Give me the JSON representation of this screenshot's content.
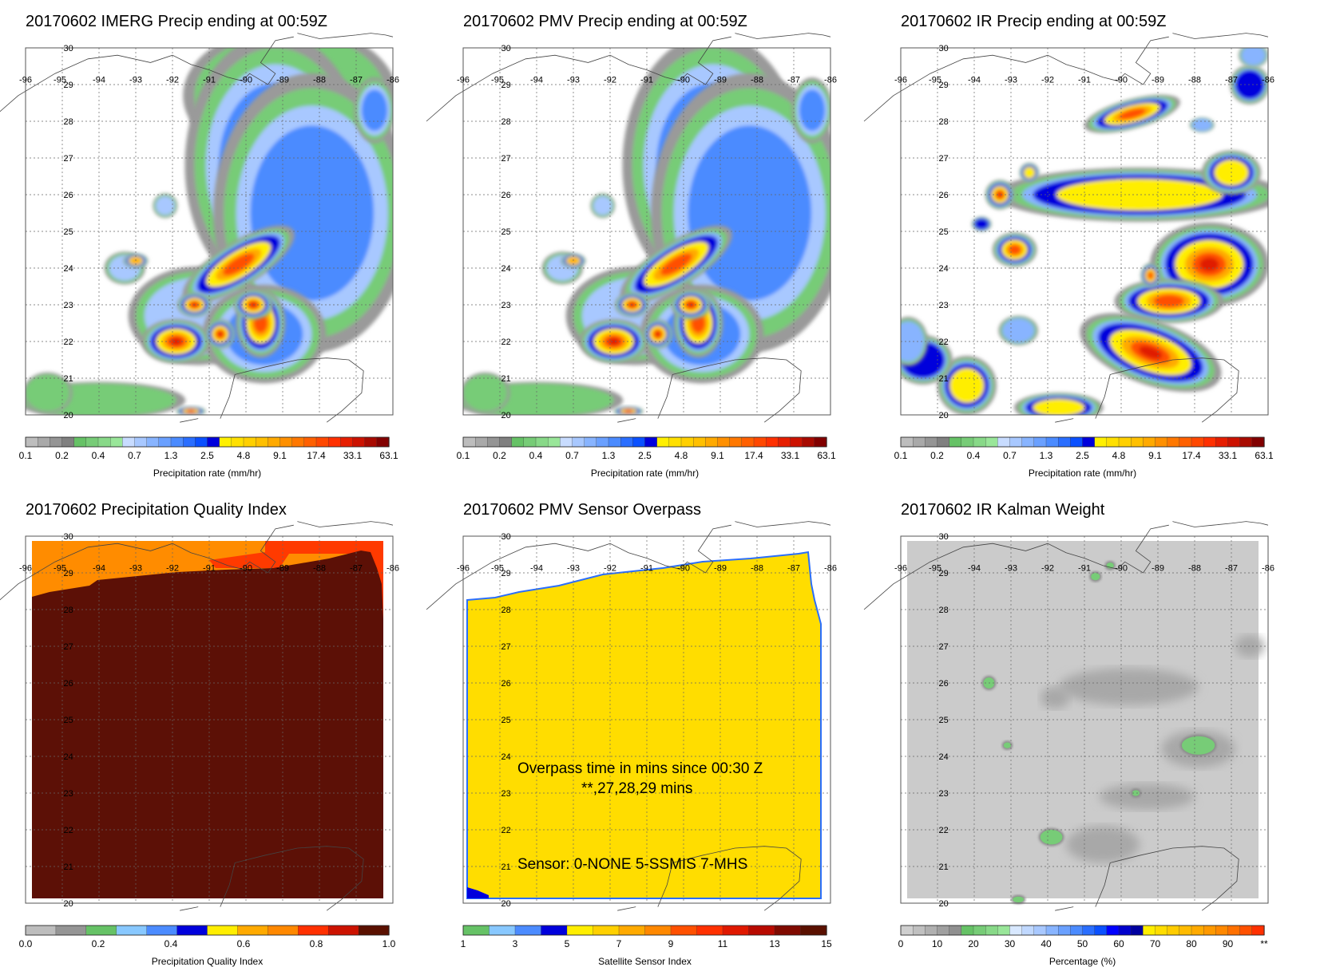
{
  "chart_data": [
    {
      "type": "heatmap",
      "title": "20170602 IMERG Precip ending at 00:59Z",
      "lon_ticks": [
        "-96",
        "-95",
        "-94",
        "-93",
        "-92",
        "-91",
        "-90",
        "-89",
        "-88",
        "-87",
        "-86"
      ],
      "lat_ticks": [
        "30",
        "29",
        "28",
        "27",
        "26",
        "25",
        "24",
        "23",
        "22",
        "21",
        "20"
      ],
      "xlim": [
        -96,
        -86
      ],
      "ylim": [
        20,
        30
      ],
      "colorbar": {
        "label": "Precipitation rate (mm/hr)",
        "tick_labels": [
          "0.1",
          "0.2",
          "0.4",
          "0.7",
          "1.3",
          "2.5",
          "4.8",
          "9.1",
          "17.4",
          "33.1",
          "63.1"
        ],
        "colors": [
          "#bdbdbd",
          "#a9a9a9",
          "#959595",
          "#808080",
          "#66c266",
          "#77cc77",
          "#88d988",
          "#99e699",
          "#c8dcff",
          "#a8c8ff",
          "#88b4ff",
          "#6aa0ff",
          "#4b8bff",
          "#2a6eff",
          "#0a50ff",
          "#0000dc",
          "#fff000",
          "#ffe000",
          "#ffd000",
          "#ffc000",
          "#ffaa00",
          "#ff9000",
          "#ff7800",
          "#ff6000",
          "#ff4800",
          "#ff3000",
          "#e61e00",
          "#cc1200",
          "#a80a00",
          "#820000"
        ]
      },
      "features": [
        {
          "type": "low",
          "lon": -88.8,
          "lat": 28.7,
          "rx": 2.6,
          "ry": 1.7,
          "intensity": 0.3
        },
        {
          "type": "low",
          "lon": -89.2,
          "lat": 26.8,
          "rx": 2.2,
          "ry": 3.2,
          "intensity": 0.55
        },
        {
          "type": "low",
          "lon": -88.2,
          "lat": 25.5,
          "rx": 2.4,
          "ry": 3.4,
          "intensity": 0.55
        },
        {
          "type": "low",
          "lon": -86.5,
          "lat": 28.3,
          "rx": 0.5,
          "ry": 0.8,
          "intensity": 0.65
        },
        {
          "type": "low",
          "lon": -91.3,
          "lat": 22.7,
          "rx": 1.7,
          "ry": 1.2,
          "intensity": 0.45
        },
        {
          "type": "low",
          "lon": -89.5,
          "lat": 22.2,
          "rx": 1.5,
          "ry": 1.2,
          "intensity": 0.5
        },
        {
          "type": "low",
          "lon": -94.0,
          "lat": 20.4,
          "rx": 2.1,
          "ry": 0.45,
          "intensity": 0.25
        },
        {
          "type": "low",
          "lon": -95.4,
          "lat": 20.6,
          "rx": 0.6,
          "ry": 0.5,
          "intensity": 0.25
        },
        {
          "type": "low",
          "lon": -92.2,
          "lat": 25.7,
          "rx": 0.3,
          "ry": 0.3,
          "intensity": 0.4
        },
        {
          "type": "low",
          "lon": -93.3,
          "lat": 24.0,
          "rx": 0.5,
          "ry": 0.4,
          "intensity": 0.4
        },
        {
          "type": "core",
          "lon": -90.2,
          "lat": 24.1,
          "rx": 1.3,
          "ry": 0.45,
          "angle": -32,
          "intensity": 0.75
        },
        {
          "type": "core",
          "lon": -91.9,
          "lat": 22.0,
          "rx": 0.7,
          "ry": 0.45,
          "intensity": 0.95
        },
        {
          "type": "core",
          "lon": -90.7,
          "lat": 22.2,
          "rx": 0.3,
          "ry": 0.3,
          "intensity": 0.9
        },
        {
          "type": "core",
          "lon": -89.6,
          "lat": 22.5,
          "rx": 0.5,
          "ry": 0.7,
          "intensity": 0.75
        },
        {
          "type": "core",
          "lon": -89.8,
          "lat": 23.0,
          "rx": 0.4,
          "ry": 0.3,
          "intensity": 0.95
        },
        {
          "type": "core",
          "lon": -91.4,
          "lat": 23.0,
          "rx": 0.35,
          "ry": 0.25,
          "intensity": 0.9
        },
        {
          "type": "core",
          "lon": -93.0,
          "lat": 24.2,
          "rx": 0.25,
          "ry": 0.15,
          "intensity": 0.7
        },
        {
          "type": "core",
          "lon": -91.5,
          "lat": 20.1,
          "rx": 0.3,
          "ry": 0.1,
          "intensity": 0.95
        }
      ]
    },
    {
      "type": "heatmap",
      "title": "20170602 PMV Precip ending at 00:59Z",
      "lon_ticks": [
        "-96",
        "-95",
        "-94",
        "-93",
        "-92",
        "-91",
        "-90",
        "-89",
        "-88",
        "-87",
        "-86"
      ],
      "lat_ticks": [
        "30",
        "29",
        "28",
        "27",
        "26",
        "25",
        "24",
        "23",
        "22",
        "21",
        "20"
      ],
      "xlim": [
        -96,
        -86
      ],
      "ylim": [
        20,
        30
      ],
      "colorbar": {
        "label": "Precipitation rate (mm/hr)",
        "tick_labels": [
          "0.1",
          "0.2",
          "0.4",
          "0.7",
          "1.3",
          "2.5",
          "4.8",
          "9.1",
          "17.4",
          "33.1",
          "63.1"
        ],
        "colors": [
          "#bdbdbd",
          "#a9a9a9",
          "#959595",
          "#808080",
          "#66c266",
          "#77cc77",
          "#88d988",
          "#99e699",
          "#c8dcff",
          "#a8c8ff",
          "#88b4ff",
          "#6aa0ff",
          "#4b8bff",
          "#2a6eff",
          "#0a50ff",
          "#0000dc",
          "#fff000",
          "#ffe000",
          "#ffd000",
          "#ffc000",
          "#ffaa00",
          "#ff9000",
          "#ff7800",
          "#ff6000",
          "#ff4800",
          "#ff3000",
          "#e61e00",
          "#cc1200",
          "#a80a00",
          "#820000"
        ]
      },
      "features": [
        {
          "type": "low",
          "lon": -89.2,
          "lat": 26.8,
          "rx": 2.2,
          "ry": 3.2,
          "intensity": 0.55
        },
        {
          "type": "low",
          "lon": -88.2,
          "lat": 25.5,
          "rx": 2.4,
          "ry": 3.4,
          "intensity": 0.55
        },
        {
          "type": "low",
          "lon": -86.5,
          "lat": 28.3,
          "rx": 0.5,
          "ry": 0.8,
          "intensity": 0.65
        },
        {
          "type": "low",
          "lon": -91.3,
          "lat": 22.7,
          "rx": 1.7,
          "ry": 1.2,
          "intensity": 0.45
        },
        {
          "type": "low",
          "lon": -89.5,
          "lat": 22.2,
          "rx": 1.5,
          "ry": 1.2,
          "intensity": 0.5
        },
        {
          "type": "low",
          "lon": -94.0,
          "lat": 20.4,
          "rx": 2.1,
          "ry": 0.45,
          "intensity": 0.25
        },
        {
          "type": "low",
          "lon": -95.4,
          "lat": 20.6,
          "rx": 0.6,
          "ry": 0.5,
          "intensity": 0.25
        },
        {
          "type": "low",
          "lon": -92.2,
          "lat": 25.7,
          "rx": 0.3,
          "ry": 0.3,
          "intensity": 0.4
        },
        {
          "type": "low",
          "lon": -93.3,
          "lat": 24.0,
          "rx": 0.5,
          "ry": 0.4,
          "intensity": 0.4
        },
        {
          "type": "core",
          "lon": -90.2,
          "lat": 24.1,
          "rx": 1.3,
          "ry": 0.45,
          "angle": -32,
          "intensity": 0.75
        },
        {
          "type": "core",
          "lon": -91.9,
          "lat": 22.0,
          "rx": 0.7,
          "ry": 0.45,
          "intensity": 0.95
        },
        {
          "type": "core",
          "lon": -90.7,
          "lat": 22.2,
          "rx": 0.3,
          "ry": 0.3,
          "intensity": 0.9
        },
        {
          "type": "core",
          "lon": -89.6,
          "lat": 22.5,
          "rx": 0.5,
          "ry": 0.7,
          "intensity": 0.75
        },
        {
          "type": "core",
          "lon": -89.8,
          "lat": 23.0,
          "rx": 0.4,
          "ry": 0.3,
          "intensity": 0.95
        },
        {
          "type": "core",
          "lon": -91.4,
          "lat": 23.0,
          "rx": 0.35,
          "ry": 0.25,
          "intensity": 0.9
        },
        {
          "type": "core",
          "lon": -93.0,
          "lat": 24.2,
          "rx": 0.25,
          "ry": 0.15,
          "intensity": 0.7
        },
        {
          "type": "core",
          "lon": -91.5,
          "lat": 20.1,
          "rx": 0.3,
          "ry": 0.1,
          "intensity": 0.95
        }
      ]
    },
    {
      "type": "heatmap",
      "title": "20170602 IR Precip ending at 00:59Z",
      "lon_ticks": [
        "-96",
        "-95",
        "-94",
        "-93",
        "-92",
        "-91",
        "-90",
        "-89",
        "-88",
        "-87",
        "-86"
      ],
      "lat_ticks": [
        "30",
        "29",
        "28",
        "27",
        "26",
        "25",
        "24",
        "23",
        "22",
        "21",
        "20"
      ],
      "xlim": [
        -96,
        -86
      ],
      "ylim": [
        20,
        30
      ],
      "colorbar": {
        "label": "Precipitation rate (mm/hr)",
        "tick_labels": [
          "0.1",
          "0.2",
          "0.4",
          "0.7",
          "1.3",
          "2.5",
          "4.8",
          "9.1",
          "17.4",
          "33.1",
          "63.1"
        ],
        "colors": [
          "#bdbdbd",
          "#a9a9a9",
          "#959595",
          "#808080",
          "#66c266",
          "#77cc77",
          "#88d988",
          "#99e699",
          "#c8dcff",
          "#a8c8ff",
          "#88b4ff",
          "#6aa0ff",
          "#4b8bff",
          "#2a6eff",
          "#0a50ff",
          "#0000dc",
          "#fff000",
          "#ffe000",
          "#ffd000",
          "#ffc000",
          "#ffaa00",
          "#ff9000",
          "#ff7800",
          "#ff6000",
          "#ff4800",
          "#ff3000",
          "#e61e00",
          "#cc1200",
          "#a80a00",
          "#820000"
        ]
      },
      "features": [
        {
          "type": "core",
          "lon": -89.7,
          "lat": 28.2,
          "rx": 1.0,
          "ry": 0.3,
          "angle": -15,
          "intensity": 0.85
        },
        {
          "type": "core",
          "lon": -89.5,
          "lat": 26.0,
          "rx": 2.9,
          "ry": 0.55,
          "intensity": 0.55
        },
        {
          "type": "core",
          "lon": -87.0,
          "lat": 26.6,
          "rx": 0.6,
          "ry": 0.45,
          "intensity": 0.55
        },
        {
          "type": "core",
          "lon": -93.3,
          "lat": 26.0,
          "rx": 0.3,
          "ry": 0.3,
          "intensity": 0.9
        },
        {
          "type": "core",
          "lon": -87.6,
          "lat": 24.1,
          "rx": 1.2,
          "ry": 0.85,
          "intensity": 0.9
        },
        {
          "type": "core",
          "lon": -88.7,
          "lat": 23.1,
          "rx": 1.1,
          "ry": 0.45,
          "intensity": 0.85
        },
        {
          "type": "core",
          "lon": -89.2,
          "lat": 21.7,
          "rx": 1.5,
          "ry": 0.65,
          "angle": 20,
          "intensity": 0.9
        },
        {
          "type": "core",
          "lon": -92.9,
          "lat": 24.5,
          "rx": 0.45,
          "ry": 0.35,
          "intensity": 0.8
        },
        {
          "type": "core",
          "lon": -94.2,
          "lat": 20.8,
          "rx": 0.6,
          "ry": 0.6,
          "intensity": 0.5
        },
        {
          "type": "core",
          "lon": -95.4,
          "lat": 21.5,
          "rx": 0.6,
          "ry": 0.5,
          "intensity": 0.4
        },
        {
          "type": "core",
          "lon": -91.7,
          "lat": 20.2,
          "rx": 0.9,
          "ry": 0.3,
          "intensity": 0.55
        },
        {
          "type": "core",
          "lon": -92.5,
          "lat": 26.6,
          "rx": 0.2,
          "ry": 0.2,
          "intensity": 0.6
        },
        {
          "type": "core",
          "lon": -89.2,
          "lat": 23.8,
          "rx": 0.2,
          "ry": 0.25,
          "intensity": 0.75
        },
        {
          "type": "core",
          "lon": -93.8,
          "lat": 25.2,
          "rx": 0.2,
          "ry": 0.15,
          "intensity": 0.45
        },
        {
          "type": "core",
          "lon": -87.8,
          "lat": 27.9,
          "rx": 0.25,
          "ry": 0.15,
          "intensity": 0.35
        },
        {
          "type": "core",
          "lon": -86.5,
          "lat": 29.0,
          "rx": 0.4,
          "ry": 0.4,
          "intensity": 0.4
        },
        {
          "type": "core",
          "lon": -86.4,
          "lat": 29.8,
          "rx": 0.3,
          "ry": 0.25,
          "intensity": 0.3
        },
        {
          "type": "core",
          "lon": -92.8,
          "lat": 22.3,
          "rx": 0.4,
          "ry": 0.3,
          "intensity": 0.35
        },
        {
          "type": "core",
          "lon": -95.8,
          "lat": 22.0,
          "rx": 0.4,
          "ry": 0.5,
          "intensity": 0.35
        }
      ]
    },
    {
      "type": "heatmap",
      "title": "20170602 Precipitation Quality Index",
      "lon_ticks": [
        "-96",
        "-95",
        "-94",
        "-93",
        "-92",
        "-91",
        "-90",
        "-89",
        "-88",
        "-87",
        "-86"
      ],
      "lat_ticks": [
        "30",
        "29",
        "28",
        "27",
        "26",
        "25",
        "24",
        "23",
        "22",
        "21",
        "20"
      ],
      "xlim": [
        -96,
        -86
      ],
      "ylim": [
        20,
        30
      ],
      "colorbar": {
        "label": "Precipitation Quality Index",
        "tick_labels": [
          "0.0",
          "0.2",
          "0.4",
          "0.6",
          "0.8",
          "1.0"
        ],
        "colors": [
          "#bdbdbd",
          "#959595",
          "#66c266",
          "#88c8ff",
          "#4b8bff",
          "#0000dc",
          "#ffee00",
          "#ffaa00",
          "#ff8800",
          "#ff3000",
          "#cc1200",
          "#5a1000"
        ]
      },
      "layers": [
        {
          "value": 0.7,
          "color": "#ff8c00"
        },
        {
          "value": 0.9,
          "color": "#ff3a00"
        },
        {
          "value": 1.0,
          "color": "#5c1006"
        }
      ]
    },
    {
      "type": "heatmap",
      "title": "20170602 PMV Sensor Overpass",
      "lon_ticks": [
        "-96",
        "-95",
        "-94",
        "-93",
        "-92",
        "-91",
        "-90",
        "-89",
        "-88",
        "-87",
        "-86"
      ],
      "lat_ticks": [
        "30",
        "29",
        "28",
        "27",
        "26",
        "25",
        "24",
        "23",
        "22",
        "21",
        "20"
      ],
      "xlim": [
        -96,
        -86
      ],
      "ylim": [
        20,
        30
      ],
      "colorbar": {
        "label": "Satellite Sensor Index",
        "tick_labels": [
          "1",
          "3",
          "5",
          "7",
          "9",
          "11",
          "13",
          "15"
        ],
        "colors": [
          "#66c266",
          "#88c8ff",
          "#4b8bff",
          "#0000dc",
          "#ffee00",
          "#ffd000",
          "#ffaa00",
          "#ff8800",
          "#ff5000",
          "#ff3000",
          "#e01800",
          "#b80a00",
          "#800a00",
          "#5a1000"
        ]
      },
      "annotations": {
        "line1": "Overpass time in mins since 00:30 Z",
        "line2": "**,27,28,29 mins",
        "line3": "Sensor:   0-NONE  5-SSMIS  7-MHS"
      },
      "fill_color": "#ffdd00",
      "corner_color": "#0000dc"
    },
    {
      "type": "heatmap",
      "title": "20170602 IR Kalman Weight",
      "lon_ticks": [
        "-96",
        "-95",
        "-94",
        "-93",
        "-92",
        "-91",
        "-90",
        "-89",
        "-88",
        "-87",
        "-86"
      ],
      "lat_ticks": [
        "30",
        "29",
        "28",
        "27",
        "26",
        "25",
        "24",
        "23",
        "22",
        "21",
        "20"
      ],
      "xlim": [
        -96,
        -86
      ],
      "ylim": [
        20,
        30
      ],
      "colorbar": {
        "label": "Percentage (%)",
        "tick_labels": [
          "0",
          "10",
          "20",
          "30",
          "40",
          "50",
          "60",
          "70",
          "80",
          "90",
          "**"
        ],
        "colors": [
          "#cfcfcf",
          "#c0c0c0",
          "#b0b0b0",
          "#a0a0a0",
          "#909090",
          "#66c266",
          "#77cc77",
          "#88d988",
          "#99e699",
          "#d8e8ff",
          "#c0d8ff",
          "#a8c8ff",
          "#88b4ff",
          "#6aa0ff",
          "#4b8bff",
          "#2a6eff",
          "#0a50ff",
          "#0000ff",
          "#0000cc",
          "#0000a0",
          "#ffee00",
          "#ffdd00",
          "#ffcc00",
          "#ffbb00",
          "#ffaa00",
          "#ff9900",
          "#ff8800",
          "#ff7000",
          "#ff5000",
          "#ff3000"
        ]
      },
      "features": [
        {
          "lon": -87.9,
          "lat": 24.3,
          "rx": 0.45,
          "ry": 0.25,
          "intensity": 0.9
        },
        {
          "lon": -91.9,
          "lat": 21.8,
          "rx": 0.3,
          "ry": 0.2,
          "intensity": 0.9
        },
        {
          "lon": -93.6,
          "lat": 26.0,
          "rx": 0.15,
          "ry": 0.15,
          "intensity": 0.8
        },
        {
          "lon": -93.1,
          "lat": 24.3,
          "rx": 0.1,
          "ry": 0.08,
          "intensity": 0.7
        },
        {
          "lon": -90.7,
          "lat": 28.9,
          "rx": 0.12,
          "ry": 0.1,
          "intensity": 0.7
        },
        {
          "lon": -90.3,
          "lat": 29.2,
          "rx": 0.1,
          "ry": 0.08,
          "intensity": 0.7
        },
        {
          "lon": -89.6,
          "lat": 23.0,
          "rx": 0.1,
          "ry": 0.08,
          "intensity": 0.7
        },
        {
          "lon": -92.8,
          "lat": 20.1,
          "rx": 0.15,
          "ry": 0.08,
          "intensity": 0.6
        }
      ]
    }
  ]
}
